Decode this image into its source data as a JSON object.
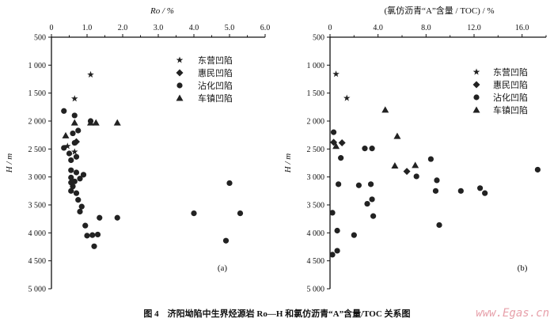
{
  "caption": "图 4　济阳坳陷中生界烃源岩 Ro—H 和氯仿沥青“A”含量/TOC 关系图",
  "watermark": "www.Egas.cn",
  "colors": {
    "marker": "#222222",
    "watermark": "#e7a0aa"
  },
  "chart_data": [
    {
      "type": "scatter",
      "panel_label": "(a)",
      "xlabel": "Ro / %",
      "ylabel": "H / m",
      "xlim": [
        0,
        6
      ],
      "ylim": [
        500,
        5000
      ],
      "y_inverted": true,
      "x_axis_position": "top",
      "grid": false,
      "legend_placement": "top-right",
      "xticks": [
        "0",
        "1.0",
        "2.0",
        "3.0",
        "4.0",
        "5.0",
        "6.0"
      ],
      "xtick_values": [
        0,
        1,
        2,
        3,
        4,
        5,
        6
      ],
      "yticks": [
        "500",
        "1 000",
        "1 500",
        "2 000",
        "2 500",
        "3 000",
        "3 500",
        "4 000",
        "4 500",
        "5 000"
      ],
      "ytick_values": [
        500,
        1000,
        1500,
        2000,
        2500,
        3000,
        3500,
        4000,
        4500,
        5000
      ],
      "series": [
        {
          "name": "东营凹陷",
          "marker": "star",
          "points": [
            [
              1.1,
              1170
            ],
            [
              0.65,
              1600
            ],
            [
              0.45,
              2450
            ],
            [
              0.65,
              2550
            ]
          ]
        },
        {
          "name": "惠民凹陷",
          "marker": "diamond",
          "points": [
            [
              0.7,
              2370
            ]
          ]
        },
        {
          "name": "沾化凹陷",
          "marker": "circle",
          "points": [
            [
              0.35,
              1820
            ],
            [
              0.65,
              1900
            ],
            [
              1.1,
              2000
            ],
            [
              0.75,
              2170
            ],
            [
              0.6,
              2220
            ],
            [
              0.65,
              2390
            ],
            [
              0.35,
              2480
            ],
            [
              0.5,
              2580
            ],
            [
              0.7,
              2640
            ],
            [
              0.55,
              2700
            ],
            [
              0.55,
              2880
            ],
            [
              0.7,
              2920
            ],
            [
              0.9,
              2960
            ],
            [
              0.55,
              3010
            ],
            [
              0.8,
              3030
            ],
            [
              0.65,
              3080
            ],
            [
              0.55,
              3100
            ],
            [
              0.6,
              3170
            ],
            [
              0.55,
              3250
            ],
            [
              0.7,
              3290
            ],
            [
              0.75,
              3410
            ],
            [
              0.85,
              3530
            ],
            [
              0.8,
              3620
            ],
            [
              0.95,
              3870
            ],
            [
              1.35,
              3730
            ],
            [
              1.85,
              3730
            ],
            [
              1.0,
              4050
            ],
            [
              1.15,
              4040
            ],
            [
              1.3,
              4030
            ],
            [
              1.2,
              4240
            ],
            [
              4.0,
              3650
            ],
            [
              5.0,
              3110
            ],
            [
              5.3,
              3650
            ],
            [
              4.9,
              4140
            ]
          ]
        },
        {
          "name": "车镇凹陷",
          "marker": "triangle",
          "points": [
            [
              0.65,
              2030
            ],
            [
              1.1,
              2030
            ],
            [
              1.25,
              2030
            ],
            [
              1.85,
              2030
            ],
            [
              0.4,
              2260
            ]
          ]
        }
      ]
    },
    {
      "type": "scatter",
      "panel_label": "(b)",
      "xlabel": "(氯仿沥青“A”含量 / TOC) / %",
      "ylabel": "H / m",
      "xlim": [
        0,
        18
      ],
      "ylim": [
        500,
        5000
      ],
      "y_inverted": true,
      "x_axis_position": "top",
      "grid": false,
      "legend_placement": "top-right",
      "xticks": [
        "0",
        "4.0",
        "8.0",
        "12.0",
        "16.0"
      ],
      "xtick_values": [
        0,
        4,
        8,
        12,
        16
      ],
      "yticks": [
        "500",
        "1 000",
        "1 500",
        "2 000",
        "2 500",
        "3 000",
        "3 500",
        "4 000",
        "4 500",
        "5 000"
      ],
      "ytick_values": [
        500,
        1000,
        1500,
        2000,
        2500,
        3000,
        3500,
        4000,
        4500,
        5000
      ],
      "series": [
        {
          "name": "东营凹陷",
          "marker": "star",
          "points": [
            [
              0.5,
              1160
            ],
            [
              1.4,
              1590
            ]
          ]
        },
        {
          "name": "惠民凹陷",
          "marker": "diamond",
          "points": [
            [
              0.3,
              2380
            ],
            [
              1.0,
              2390
            ],
            [
              6.4,
              2900
            ]
          ]
        },
        {
          "name": "沾化凹陷",
          "marker": "circle",
          "points": [
            [
              0.3,
              2200
            ],
            [
              2.9,
              2490
            ],
            [
              3.5,
              2490
            ],
            [
              0.9,
              2660
            ],
            [
              8.4,
              2680
            ],
            [
              17.3,
              2870
            ],
            [
              7.2,
              2990
            ],
            [
              8.9,
              3060
            ],
            [
              0.7,
              3130
            ],
            [
              2.4,
              3150
            ],
            [
              3.4,
              3130
            ],
            [
              8.8,
              3250
            ],
            [
              10.9,
              3250
            ],
            [
              12.5,
              3200
            ],
            [
              12.9,
              3290
            ],
            [
              3.1,
              3480
            ],
            [
              3.5,
              3400
            ],
            [
              0.2,
              3640
            ],
            [
              3.6,
              3700
            ],
            [
              9.1,
              3860
            ],
            [
              0.6,
              3960
            ],
            [
              2.0,
              4040
            ],
            [
              0.6,
              4320
            ],
            [
              0.2,
              4390
            ]
          ]
        },
        {
          "name": "车镇凹陷",
          "marker": "triangle",
          "points": [
            [
              4.6,
              1800
            ],
            [
              5.6,
              2270
            ],
            [
              0.5,
              2450
            ],
            [
              5.4,
              2800
            ],
            [
              7.1,
              2790
            ]
          ]
        }
      ]
    }
  ]
}
